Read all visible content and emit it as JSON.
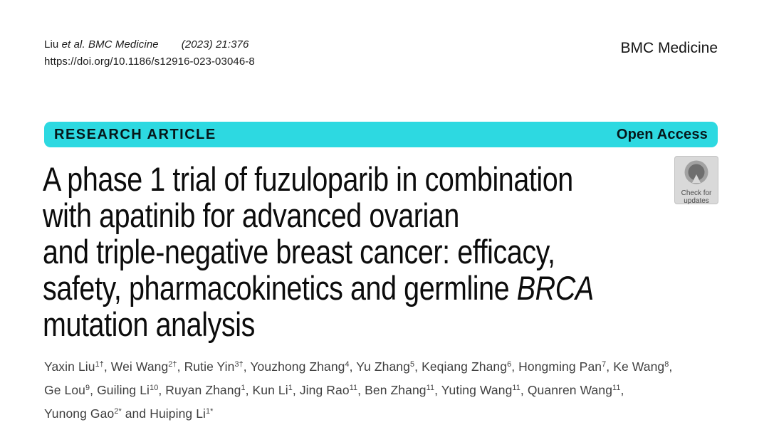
{
  "colors": {
    "banner": "#2dd9e1",
    "badge_bg": "#d9d9d9"
  },
  "header": {
    "citation": [
      {
        "t": "Liu "
      },
      {
        "t": "et al. BMC Medicine",
        "i": true
      },
      {
        "t": "(2023) 21:376",
        "i": true,
        "gap": true
      }
    ],
    "doi": "https://doi.org/10.1186/s12916-023-03046-8",
    "journal": "BMC Medicine"
  },
  "banner": {
    "label": "RESEARCH ARTICLE",
    "badge": "Open Access"
  },
  "title": {
    "lines": [
      [
        {
          "t": "A phase 1 trial of fuzuloparib in combination"
        }
      ],
      [
        {
          "t": "with apatinib for advanced ovarian"
        }
      ],
      [
        {
          "t": "and triple-negative breast cancer: efficacy,"
        }
      ],
      [
        {
          "t": "safety, pharmacokinetics and germline "
        },
        {
          "t": "BRCA",
          "i": true
        }
      ],
      [
        {
          "t": "mutation analysis"
        }
      ]
    ]
  },
  "check_badge": {
    "line1": "Check for",
    "line2": "updates"
  },
  "authors": [
    {
      "name": "Yaxin Liu",
      "sup": "1†",
      "after": ", "
    },
    {
      "name": "Wei Wang",
      "sup": "2†",
      "after": ", "
    },
    {
      "name": "Rutie Yin",
      "sup": "3†",
      "after": ", "
    },
    {
      "name": "Youzhong Zhang",
      "sup": "4",
      "after": ", "
    },
    {
      "name": "Yu Zhang",
      "sup": "5",
      "after": ", "
    },
    {
      "name": "Keqiang Zhang",
      "sup": "6",
      "after": ", "
    },
    {
      "name": "Hongming Pan",
      "sup": "7",
      "after": ", "
    },
    {
      "name": "Ke Wang",
      "sup": "8",
      "after": ",",
      "br": true
    },
    {
      "name": "Ge Lou",
      "sup": "9",
      "after": ", "
    },
    {
      "name": "Guiling Li",
      "sup": "10",
      "after": ", "
    },
    {
      "name": "Ruyan Zhang",
      "sup": "1",
      "after": ", "
    },
    {
      "name": "Kun Li",
      "sup": "1",
      "after": ", "
    },
    {
      "name": "Jing Rao",
      "sup": "11",
      "after": ", "
    },
    {
      "name": "Ben Zhang",
      "sup": "11",
      "after": ", "
    },
    {
      "name": "Yuting Wang",
      "sup": "11",
      "after": ", "
    },
    {
      "name": "Quanren Wang",
      "sup": "11",
      "after": ",",
      "br": true
    },
    {
      "name": "Yunong Gao",
      "sup": "2*",
      "after": " and "
    },
    {
      "name": "Huiping Li",
      "sup": "1*",
      "after": ""
    }
  ]
}
